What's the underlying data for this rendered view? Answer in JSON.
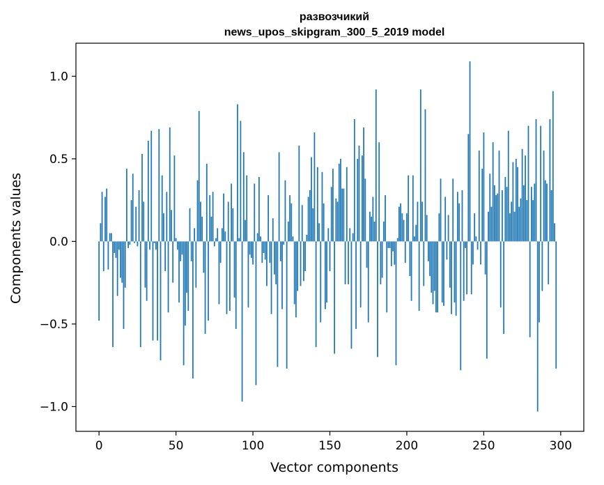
{
  "chart_data": {
    "type": "bar",
    "title": "развозчикий",
    "subtitle": "news_upos_skipgram_300_5_2019 model",
    "xlabel": "Vector components",
    "ylabel": "Components values",
    "xlim": [
      -15,
      315
    ],
    "ylim": [
      -1.15,
      1.2
    ],
    "xticks": [
      0,
      50,
      100,
      150,
      200,
      250,
      300
    ],
    "yticks": [
      -1.0,
      -0.5,
      0.0,
      0.5,
      1.0
    ],
    "xtick_labels": [
      "0",
      "50",
      "100",
      "150",
      "200",
      "250",
      "300"
    ],
    "ytick_labels": [
      "−1.0",
      "−0.5",
      "0.0",
      "0.5",
      "1.0"
    ],
    "grid": false,
    "bar_color": "#1f77b4",
    "values": [
      -0.48,
      0.11,
      0.3,
      -0.18,
      0.27,
      0.32,
      -0.17,
      0.05,
      0.05,
      -0.64,
      -0.07,
      -0.1,
      -0.33,
      -0.05,
      -0.22,
      -0.25,
      -0.53,
      -0.28,
      0.44,
      -0.04,
      -0.02,
      0.25,
      0.41,
      -0.01,
      0.21,
      -0.03,
      0.31,
      -0.64,
      0.53,
      0.24,
      -0.28,
      -0.36,
      0.61,
      -0.05,
      0.67,
      -0.6,
      -0.01,
      -0.05,
      -0.6,
      0.68,
      -0.72,
      0.4,
      0.17,
      -0.18,
      0.3,
      -0.43,
      0.69,
      0.19,
      -0.25,
      0.52,
      0.02,
      -0.05,
      -0.37,
      -0.12,
      -0.08,
      -0.75,
      -0.51,
      -0.31,
      -0.42,
      0.2,
      -0.12,
      -0.83,
      0.08,
      -0.28,
      0.37,
      0.79,
      0.24,
      0.15,
      -0.19,
      -0.56,
      0.47,
      -0.48,
      0.28,
      0.15,
      0.3,
      -0.03,
      0.02,
      0.08,
      -0.38,
      -0.13,
      0.08,
      0.29,
      0.06,
      -0.44,
      0.24,
      -0.42,
      0.35,
      0.2,
      -0.34,
      -0.53,
      0.83,
      0.02,
      0.73,
      -0.97,
      0.54,
      0.13,
      0.4,
      -0.4,
      -0.08,
      -0.1,
      -0.14,
      0.35,
      -0.87,
      0.05,
      0.39,
      0.03,
      -0.13,
      -0.07,
      -0.11,
      -0.27,
      0.28,
      -0.13,
      -0.44,
      0.14,
      -0.2,
      -0.26,
      -0.76,
      0.54,
      -0.12,
      -0.41,
      -0.02,
      0.37,
      -0.77,
      0.12,
      0.28,
      0.23,
      0.03,
      -0.38,
      -0.46,
      -0.3,
      0.58,
      -0.27,
      0.22,
      -0.24,
      -0.18,
      0.04,
      0.27,
      0.31,
      0.51,
      0.2,
      0.66,
      -0.64,
      0.45,
      0.11,
      -0.49,
      0.42,
      0.23,
      -0.41,
      -0.37,
      0.08,
      -0.18,
      0.33,
      0.44,
      -0.68,
      0.26,
      0.24,
      0.47,
      0.5,
      0.32,
      0.32,
      -0.26,
      0.45,
      -0.26,
      0.08,
      -0.65,
      0.05,
      0.74,
      -0.53,
      0.5,
      0.58,
      -0.4,
      0.52,
      0.69,
      0.38,
      -0.16,
      -0.49,
      0.18,
      0.15,
      0.27,
      0.12,
      0.92,
      -0.7,
      0.6,
      -0.26,
      -0.22,
      0.12,
      0.28,
      -0.43,
      -0.04,
      -0.04,
      -0.15,
      -0.06,
      -0.14,
      -0.75,
      0.02,
      0.21,
      0.23,
      0.17,
      0.13,
      -0.13,
      0.17,
      0.4,
      -0.21,
      -0.36,
      0.4,
      0.03,
      0.1,
      0.24,
      -0.42,
      0.92,
      0.24,
      -0.27,
      0.8,
      0.16,
      -0.12,
      -0.21,
      -0.31,
      -0.38,
      -0.3,
      -0.43,
      -0.43,
      0.17,
      0.38,
      -0.37,
      -0.39,
      0.27,
      -0.11,
      0.16,
      -0.28,
      -0.44,
      0.38,
      -0.37,
      -0.45,
      0.3,
      0.23,
      -0.78,
      0.31,
      -0.36,
      -0.04,
      -0.32,
      0.65,
      1.09,
      -0.32,
      -0.14,
      0.17,
      0.03,
      -0.05,
      0.55,
      -0.14,
      0.44,
      0.66,
      -0.2,
      -0.71,
      0.18,
      0.41,
      0.21,
      0.6,
      0.34,
      0.28,
      0.29,
      0.55,
      -0.4,
      0.31,
      -0.56,
      0.39,
      0.33,
      0.67,
      0.17,
      0.24,
      0.48,
      0.18,
      0.5,
      0.45,
      0.21,
      0.26,
      0.56,
      0.34,
      0.52,
      0.25,
      0.7,
      -0.58,
      0.33,
      0.25,
      0.35,
      0.74,
      -1.03,
      -0.49,
      0.7,
      -0.3,
      0.55,
      0.37,
      0.35,
      -0.26,
      0.74,
      0.31,
      0.91,
      0.11,
      -0.77
    ]
  }
}
